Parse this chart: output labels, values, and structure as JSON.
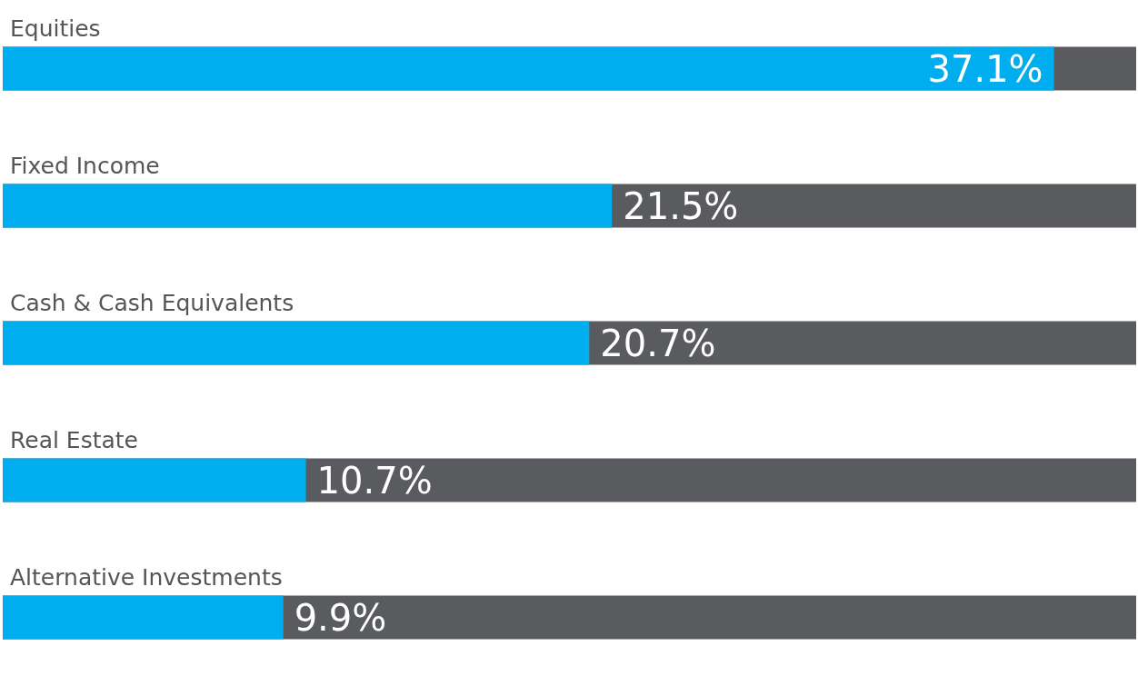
{
  "chart_data": {
    "type": "bar",
    "orientation": "horizontal",
    "categories": [
      "Equities",
      "Fixed Income",
      "Cash & Cash Equivalents",
      "Real Estate",
      "Alternative Investments"
    ],
    "values": [
      37.1,
      21.5,
      20.7,
      10.7,
      9.9
    ],
    "value_labels": [
      "37.1%",
      "21.5%",
      "20.7%",
      "10.7%",
      "9.9%"
    ],
    "color": "#00aeef",
    "grid": false
  }
}
